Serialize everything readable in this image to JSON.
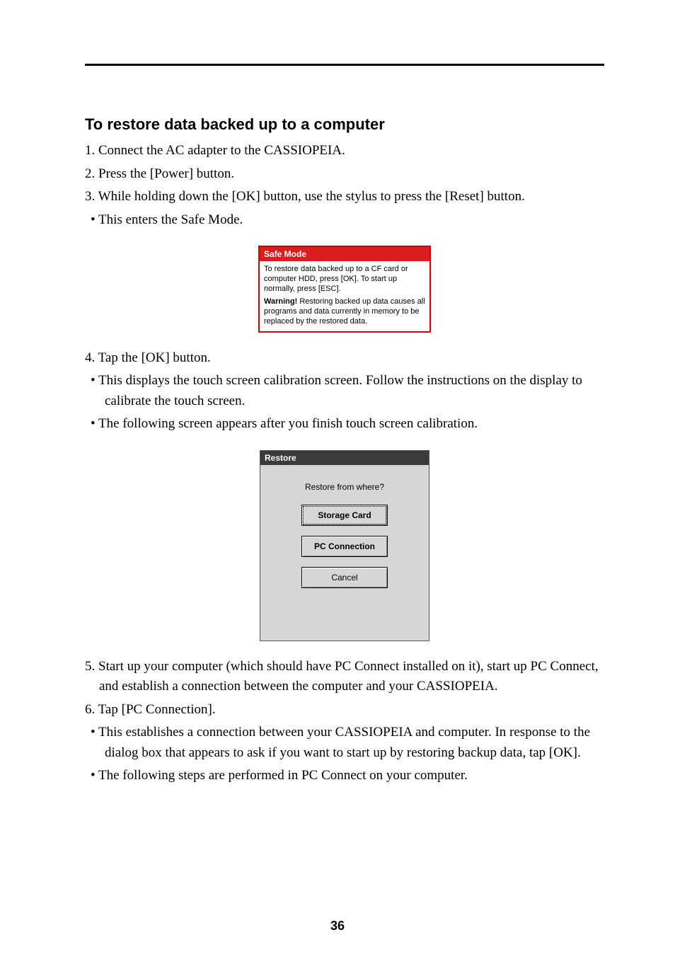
{
  "heading": "To restore data backed up to a computer",
  "steps": {
    "s1": "1. Connect the AC adapter to the CASSIOPEIA.",
    "s2": "2. Press the [Power] button.",
    "s3": "3. While holding down the [OK] button, use the stylus to press the [Reset] button.",
    "b1": "•  This enters the Safe Mode.",
    "s4": "4. Tap the [OK] button.",
    "b2": "•  This displays the touch screen calibration screen. Follow the instructions on the display to calibrate the touch screen.",
    "b3": "•  The following screen appears after you finish touch screen calibration.",
    "s5": "5. Start up your computer (which should have PC Connect installed on it), start up PC Connect, and establish a connection between the computer and your CASSIOPEIA.",
    "s6": "6. Tap [PC Connection].",
    "b4": "•  This establishes a connection between your CASSIOPEIA and computer. In response to the dialog box that appears to ask if you want to start up by restoring backup data, tap [OK].",
    "b5": "•  The following steps are performed in PC Connect on your computer."
  },
  "safemode": {
    "title": "Safe Mode",
    "body": "To restore data backed up to a CF card or computer HDD, press [OK]. To start up normally, press [ESC].",
    "warn_label": "Warning!",
    "warn_text": "Restoring backed up data causes all programs and data currently in memory to be replaced by the restored data.",
    "border_color": "#cc0000",
    "title_bg": "#d81e1e",
    "title_color": "#ffffff"
  },
  "restore": {
    "title": "Restore",
    "prompt": "Restore from where?",
    "btn_storage": "Storage Card",
    "btn_pc": "PC Connection",
    "btn_cancel": "Cancel",
    "bg_color": "#d6d6d6",
    "title_bg": "#3b3b3b"
  },
  "page_number": "36"
}
